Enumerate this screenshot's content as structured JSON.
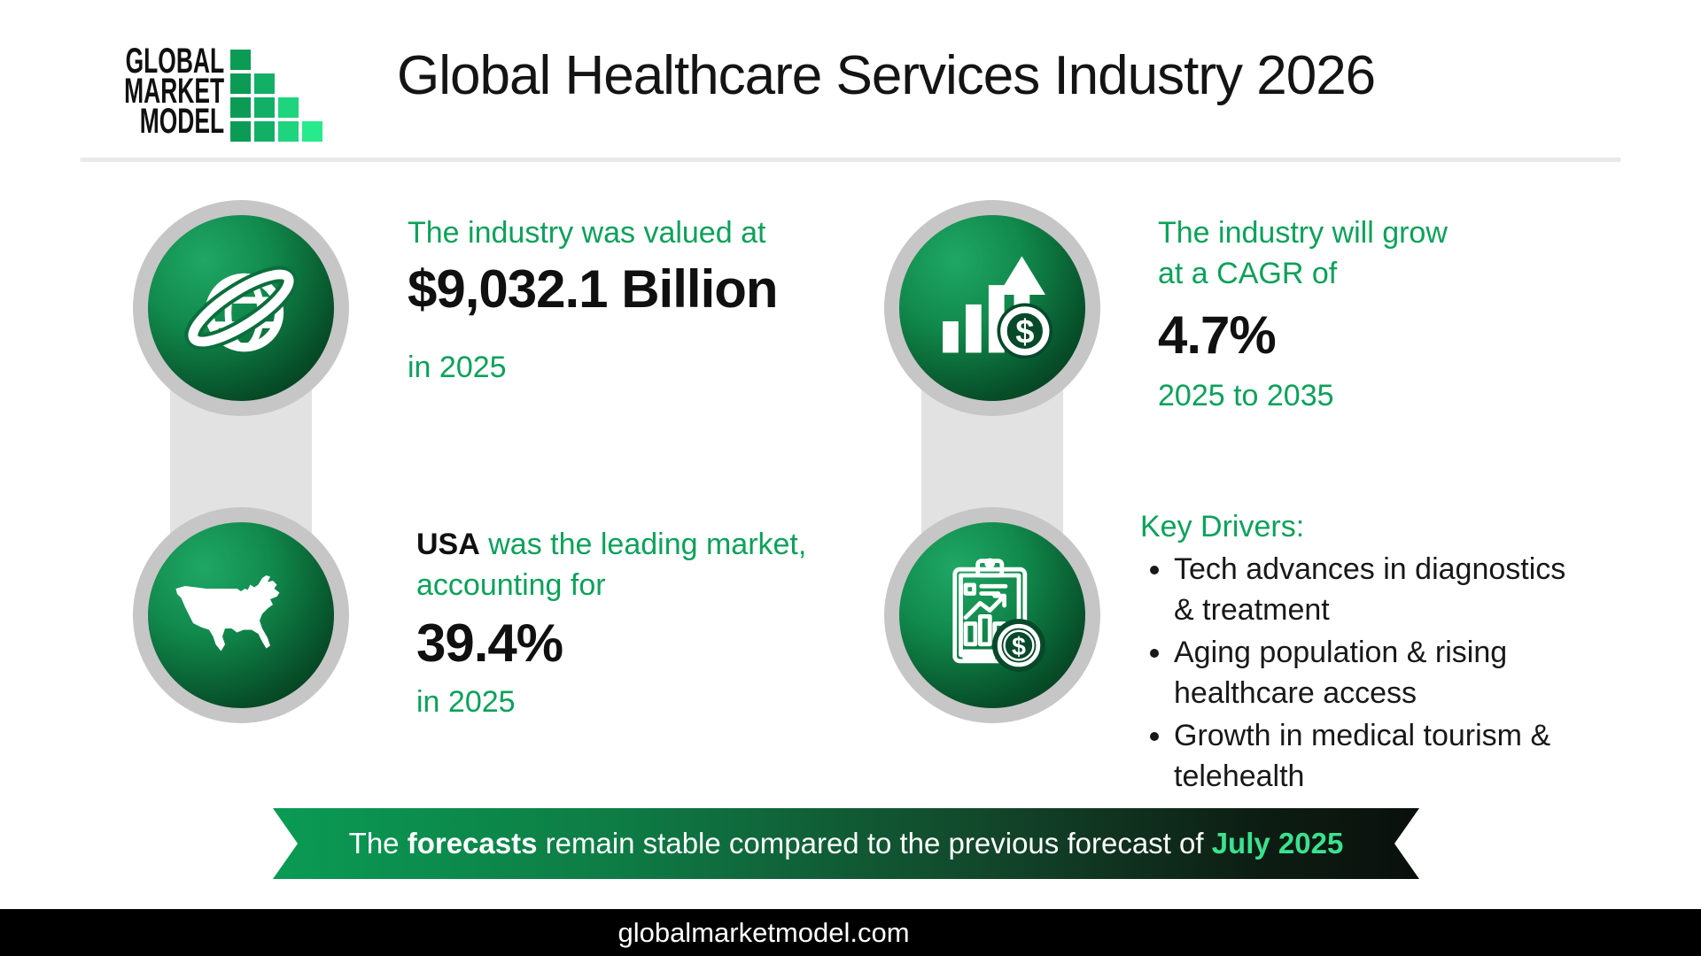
{
  "header": {
    "logo": {
      "lines": [
        "GLOBAL",
        "MARKET",
        "MODEL"
      ],
      "square_colors": [
        "#0b9b55",
        "#12b066",
        "#1ed47e",
        "#27ea8c"
      ]
    },
    "title": "Global Healthcare Services Industry 2026"
  },
  "stats": {
    "valuation": {
      "intro": "The industry was valued at",
      "value": "$9,032.1 Billion",
      "period": "in 2025",
      "icon": "globe-icon"
    },
    "leading_market": {
      "market": "USA",
      "rest_line1": " was the leading market,",
      "line2": "accounting for",
      "value": "39.4%",
      "period": "in 2025",
      "icon": "usa-map-icon"
    },
    "growth": {
      "intro_line1": "The industry will grow",
      "intro_line2": "at a CAGR of",
      "value": "4.7%",
      "period": "2025 to 2035",
      "icon": "growth-chart-icon"
    },
    "key_drivers": {
      "heading": "Key Drivers:",
      "items": [
        "Tech advances in diagnostics & treatment",
        "Aging population & rising healthcare access",
        "Growth in medical tourism & telehealth"
      ],
      "icon": "clipboard-chart-icon"
    }
  },
  "banner": {
    "prefix": "The ",
    "bold_word": "forecasts",
    "middle": " remain stable compared to the previous forecast of ",
    "highlight": "July 2025"
  },
  "footer": {
    "website": "globalmarketmodel.com"
  },
  "colors": {
    "green_text": "#0ba15a",
    "banner_gradient_left": "#0a9b54",
    "banner_gradient_right": "#0a100c",
    "banner_highlight": "#3be28e",
    "circle_green_light": "#1fa765",
    "circle_green_dark": "#042b15",
    "ring_gray": "#c6c6c6",
    "connector_gray": "#e2e2e2",
    "footer_bg": "#000000",
    "title_color": "#141414"
  }
}
